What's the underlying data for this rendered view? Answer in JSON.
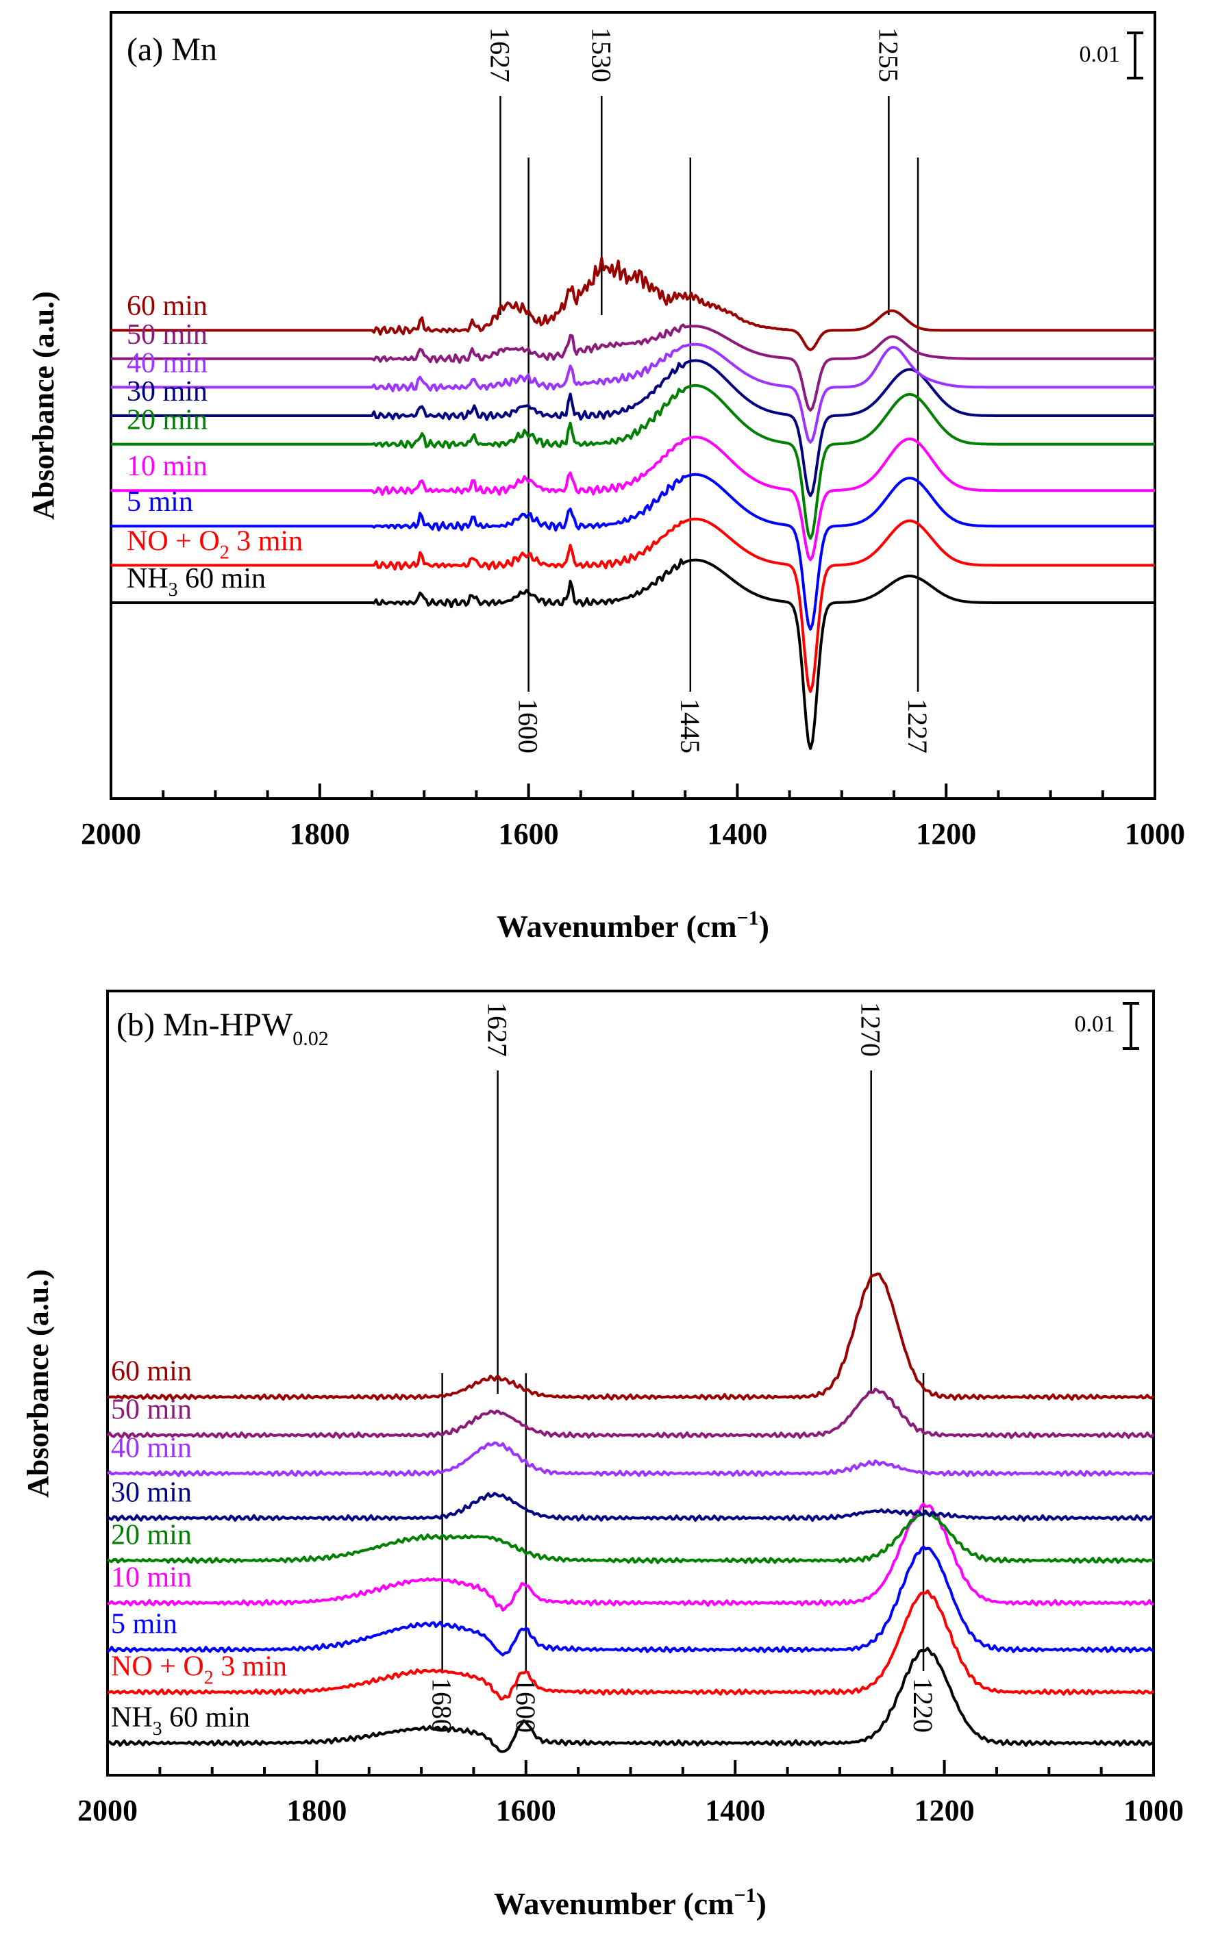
{
  "chart_data": [
    {
      "type": "line",
      "panel_label": "(a) Mn",
      "xlabel": "Wavenumber (cm",
      "xlabel_sup": "−1",
      "xlabel_close": ")",
      "ylabel": "Absorbance (a.u.)",
      "xlim": [
        2000,
        1000
      ],
      "x_ticks": [
        "2000",
        "1800",
        "1600",
        "1400",
        "1200",
        "1000"
      ],
      "scale_bar_label": "0.01",
      "series": [
        {
          "name": "NH3 60 min",
          "label": "NH",
          "label_sub": "3",
          "label_rest": " 60 min",
          "color": "#000000",
          "baseline": 0.0,
          "dip": 4.1,
          "p1600": 0.3,
          "p1445": 1.2,
          "p1227": 0.75,
          "p1255": 0.0,
          "p1530": 0.0,
          "p1627": 0.0
        },
        {
          "name": "NO + O2 3 min",
          "label": "NO + O",
          "label_sub": "2",
          "label_rest": " 3 min",
          "color": "#ff0000",
          "baseline": 1.05,
          "dip": 3.55,
          "p1600": 0.3,
          "p1445": 1.3,
          "p1227": 1.25,
          "p1255": 0.0,
          "p1530": 0.0,
          "p1627": 0.0
        },
        {
          "name": "5 min",
          "label": "5 min",
          "color": "#0000ff",
          "baseline": 2.15,
          "dip": 2.9,
          "p1600": 0.32,
          "p1445": 1.45,
          "p1227": 1.35,
          "p1255": 0.0,
          "p1530": 0.0,
          "p1627": 0.0
        },
        {
          "name": "10 min",
          "label": "10 min",
          "color": "#ff00ff",
          "baseline": 3.15,
          "dip": 1.95,
          "p1600": 0.32,
          "p1445": 1.5,
          "p1227": 1.45,
          "p1255": 0.0,
          "p1530": 0.0,
          "p1627": 0.0
        },
        {
          "name": "20 min",
          "label": "20 min",
          "color": "#008000",
          "baseline": 4.45,
          "dip": 2.65,
          "p1600": 0.3,
          "p1445": 1.65,
          "p1227": 1.4,
          "p1255": 0.0,
          "p1530": 0.0,
          "p1627": 0.0
        },
        {
          "name": "30 min",
          "label": "30 min",
          "color": "#000080",
          "baseline": 5.25,
          "dip": 2.25,
          "p1600": 0.28,
          "p1445": 1.55,
          "p1227": 1.3,
          "p1255": 0.0,
          "p1530": 0.0,
          "p1627": 0.0
        },
        {
          "name": "40 min",
          "label": "40 min",
          "color": "#9d33ff",
          "baseline": 6.05,
          "dip": 1.55,
          "p1600": 0.25,
          "p1445": 1.2,
          "p1227": 0.3,
          "p1255": 0.9,
          "p1530": 0.15,
          "p1627": 0.1
        },
        {
          "name": "50 min",
          "label": "50 min",
          "color": "#8b1a7a",
          "baseline": 6.85,
          "dip": 1.45,
          "p1600": 0.2,
          "p1445": 0.9,
          "p1227": 0.1,
          "p1255": 0.55,
          "p1530": 0.35,
          "p1627": 0.25
        },
        {
          "name": "60 min",
          "label": "60 min",
          "color": "#9b0000",
          "baseline": 7.65,
          "dip": 0.55,
          "p1600": 0.4,
          "p1445": 0.8,
          "p1227": 0.0,
          "p1255": 0.55,
          "p1530": 1.7,
          "p1627": 0.65
        }
      ],
      "annotations": [
        {
          "label": "1627",
          "x": 1627,
          "side": "top"
        },
        {
          "label": "1530",
          "x": 1530,
          "side": "top"
        },
        {
          "label": "1255",
          "x": 1255,
          "side": "top"
        },
        {
          "label": "1600",
          "x": 1600,
          "side": "bottom"
        },
        {
          "label": "1445",
          "x": 1445,
          "side": "bottom"
        },
        {
          "label": "1227",
          "x": 1227,
          "side": "bottom"
        }
      ]
    },
    {
      "type": "line",
      "panel_label": "(b) Mn-HPW",
      "panel_label_sub": "0.02",
      "xlabel": "Wavenumber (cm",
      "xlabel_sup": "−1",
      "xlabel_close": ")",
      "ylabel": "Absorbance (a.u.)",
      "xlim": [
        2000,
        1000
      ],
      "x_ticks": [
        "2000",
        "1800",
        "1600",
        "1400",
        "1200",
        "1000"
      ],
      "scale_bar_label": "0.01",
      "series": [
        {
          "name": "NH3 60 min",
          "label": "NH",
          "label_sub": "3",
          "label_rest": " 60 min",
          "color": "#000000",
          "baseline": 0.0,
          "p1680": 0.35,
          "p1600": 0.45,
          "p1220": 2.2,
          "p1270": 0.0,
          "p1627": 0.0
        },
        {
          "name": "NO + O2 3 min",
          "label": "NO + O",
          "label_sub": "2",
          "label_rest": " 3 min",
          "color": "#ff0000",
          "baseline": 1.2,
          "p1680": 0.5,
          "p1600": 0.4,
          "p1220": 2.35,
          "p1270": 0.0,
          "p1627": 0.0
        },
        {
          "name": "5 min",
          "label": "5 min",
          "color": "#0000ff",
          "baseline": 2.2,
          "p1680": 0.6,
          "p1600": 0.4,
          "p1220": 2.4,
          "p1270": 0.0,
          "p1627": 0.0
        },
        {
          "name": "10 min",
          "label": "10 min",
          "color": "#ff00ff",
          "baseline": 3.3,
          "p1680": 0.55,
          "p1600": 0.35,
          "p1220": 2.3,
          "p1270": 0.0,
          "p1627": 0.0
        },
        {
          "name": "20 min",
          "label": "20 min",
          "color": "#008000",
          "baseline": 4.3,
          "p1680": 0.55,
          "p1600": 0.0,
          "p1220": 1.1,
          "p1270": 0.0,
          "p1627": 0.25
        },
        {
          "name": "30 min",
          "label": "30 min",
          "color": "#000080",
          "baseline": 5.3,
          "p1680": 0.0,
          "p1600": 0.0,
          "p1220": 0.1,
          "p1270": 0.15,
          "p1627": 0.55
        },
        {
          "name": "40 min",
          "label": "40 min",
          "color": "#9d33ff",
          "baseline": 6.35,
          "p1680": 0.0,
          "p1600": 0.0,
          "p1220": 0.0,
          "p1270": 0.25,
          "p1627": 0.7
        },
        {
          "name": "50 min",
          "label": "50 min",
          "color": "#8b1a7a",
          "baseline": 7.25,
          "p1680": 0.0,
          "p1600": 0.0,
          "p1220": 0.0,
          "p1270": 1.05,
          "p1627": 0.55
        },
        {
          "name": "60 min",
          "label": "60 min",
          "color": "#9b0000",
          "baseline": 8.15,
          "p1680": 0.0,
          "p1600": 0.0,
          "p1220": 0.0,
          "p1270": 2.9,
          "p1627": 0.45
        }
      ],
      "annotations": [
        {
          "label": "1627",
          "x": 1627,
          "side": "top"
        },
        {
          "label": "1270",
          "x": 1270,
          "side": "top"
        },
        {
          "label": "1680",
          "x": 1680,
          "side": "bottom"
        },
        {
          "label": "1600",
          "x": 1600,
          "side": "bottom"
        },
        {
          "label": "1220",
          "x": 1220,
          "side": "bottom"
        }
      ]
    }
  ]
}
